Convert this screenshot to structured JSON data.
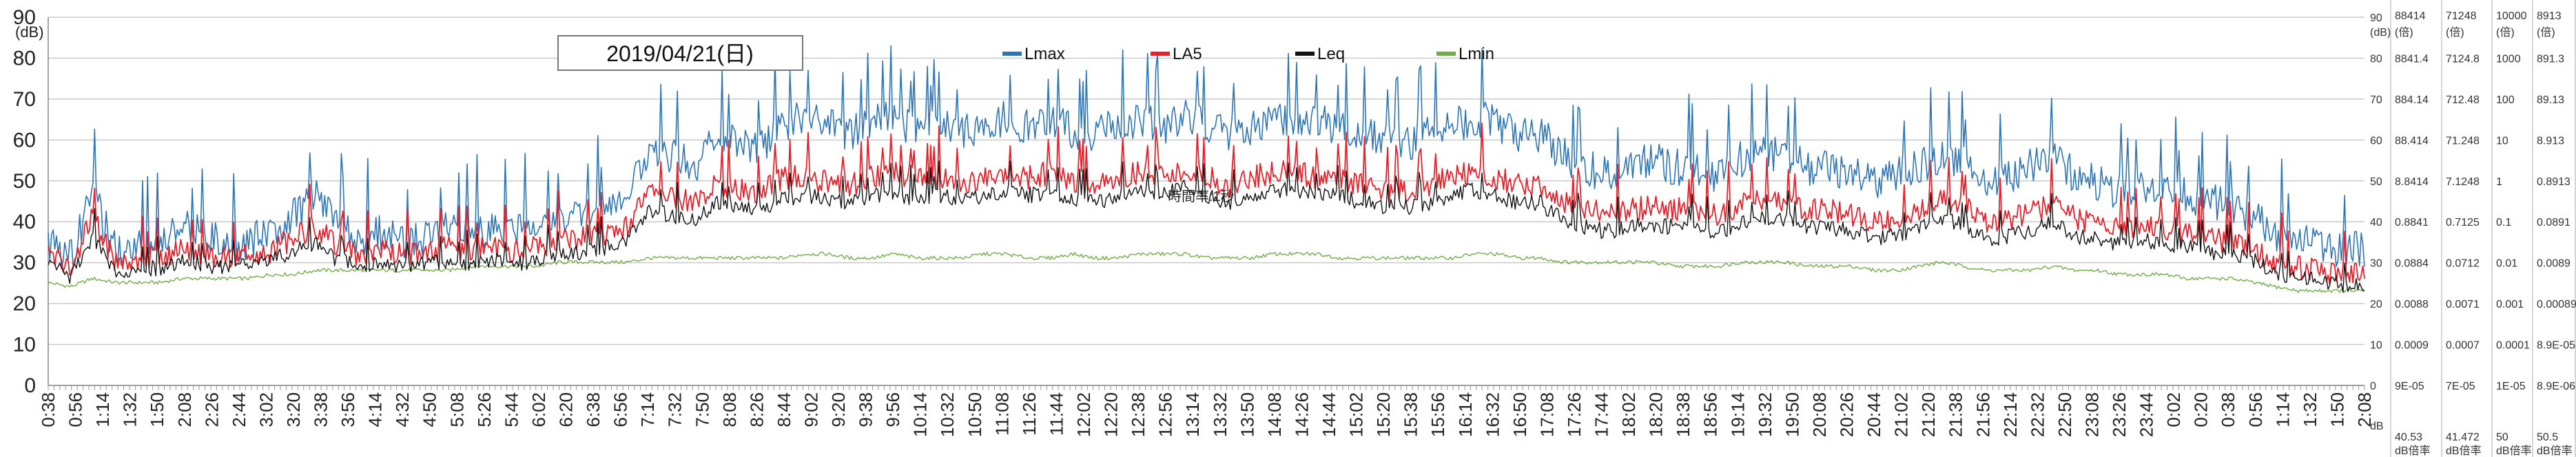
{
  "chart_data": {
    "type": "line",
    "title": "2019/04/21(日)",
    "ylabel": "(dB)",
    "ylim": [
      0,
      90
    ],
    "yticks": [
      0,
      10,
      20,
      30,
      40,
      50,
      60,
      70,
      80,
      90
    ],
    "legend": {
      "placement": "top-center"
    },
    "annotation": "時間率:1秒",
    "colors": {
      "Lmax": "#2e75b6",
      "LA5": "#e8202a",
      "Leq": "#111111",
      "Lmin": "#70ad47"
    },
    "x_tick_labels": [
      "0:38",
      "0:56",
      "1:14",
      "1:32",
      "1:50",
      "2:08",
      "2:26",
      "2:44",
      "3:02",
      "3:20",
      "3:38",
      "3:56",
      "4:14",
      "4:32",
      "4:50",
      "5:08",
      "5:26",
      "5:44",
      "6:02",
      "6:20",
      "6:38",
      "6:56",
      "7:14",
      "7:32",
      "7:50",
      "8:08",
      "8:26",
      "8:44",
      "9:02",
      "9:20",
      "9:38",
      "9:56",
      "10:14",
      "10:32",
      "10:50",
      "11:08",
      "11:26",
      "11:44",
      "12:02",
      "12:20",
      "12:38",
      "12:56",
      "13:14",
      "13:32",
      "13:50",
      "14:08",
      "14:26",
      "14:44",
      "15:02",
      "15:20",
      "15:38",
      "15:56",
      "16:14",
      "16:32",
      "16:50",
      "17:08",
      "17:26",
      "17:44",
      "18:02",
      "18:20",
      "18:38",
      "18:56",
      "19:14",
      "19:32",
      "19:50",
      "20:08",
      "20:26",
      "20:44",
      "21:02",
      "21:20",
      "21:38",
      "21:56",
      "22:14",
      "22:32",
      "22:50",
      "23:08",
      "23:26",
      "23:44",
      "0:02",
      "0:20",
      "0:38",
      "0:56",
      "1:14",
      "1:32",
      "1:50",
      "2:08"
    ],
    "series": [
      {
        "name": "Lmax",
        "values": [
          33,
          30,
          45,
          32,
          34,
          33,
          38,
          35,
          33,
          34,
          36,
          40,
          45,
          38,
          35,
          36,
          34,
          35,
          38,
          36,
          37,
          36,
          38,
          40,
          40,
          42,
          45,
          55,
          55,
          52,
          60,
          58,
          57,
          62,
          64,
          62,
          60,
          63,
          64,
          61,
          62,
          60,
          62,
          64,
          62,
          63,
          61,
          60,
          62,
          63,
          62,
          64,
          62,
          60,
          62,
          64,
          64,
          63,
          62,
          60,
          58,
          58,
          60,
          62,
          64,
          63,
          60,
          60,
          55,
          52,
          50,
          52,
          54,
          52,
          52,
          50,
          54,
          55,
          55,
          52,
          52,
          50,
          48,
          50,
          52,
          55,
          53,
          48,
          50,
          52,
          55,
          50,
          48,
          46,
          48,
          46,
          45,
          44,
          42,
          40,
          36,
          34,
          33,
          32,
          32
        ]
      },
      {
        "name": "LA5",
        "values": [
          31,
          28,
          40,
          29,
          30,
          30,
          33,
          31,
          30,
          31,
          32,
          35,
          38,
          33,
          31,
          32,
          31,
          31,
          33,
          32,
          33,
          32,
          33,
          35,
          35,
          36,
          38,
          46,
          45,
          44,
          48,
          47,
          46,
          50,
          50,
          49,
          48,
          50,
          51,
          49,
          50,
          48,
          50,
          51,
          50,
          51,
          49,
          48,
          50,
          51,
          50,
          52,
          50,
          48,
          50,
          51,
          51,
          50,
          50,
          48,
          47,
          47,
          48,
          50,
          51,
          50,
          48,
          48,
          44,
          42,
          41,
          42,
          43,
          42,
          42,
          41,
          43,
          44,
          44,
          42,
          42,
          41,
          39,
          40,
          42,
          44,
          43,
          39,
          40,
          41,
          44,
          40,
          39,
          37,
          38,
          37,
          36,
          35,
          34,
          32,
          29,
          28,
          27,
          26,
          26
        ]
      },
      {
        "name": "Leq",
        "values": [
          29,
          26,
          36,
          27,
          28,
          28,
          30,
          29,
          28,
          29,
          30,
          32,
          34,
          30,
          29,
          29,
          28,
          29,
          30,
          29,
          30,
          29,
          30,
          32,
          32,
          33,
          35,
          42,
          41,
          40,
          44,
          43,
          42,
          45,
          46,
          45,
          44,
          46,
          46,
          45,
          46,
          44,
          46,
          47,
          46,
          46,
          45,
          44,
          46,
          47,
          46,
          48,
          46,
          44,
          46,
          47,
          47,
          46,
          46,
          44,
          43,
          43,
          44,
          46,
          47,
          46,
          44,
          44,
          40,
          38,
          37,
          38,
          39,
          38,
          38,
          37,
          39,
          40,
          40,
          38,
          38,
          37,
          35,
          36,
          38,
          40,
          39,
          35,
          36,
          37,
          40,
          36,
          35,
          34,
          35,
          34,
          33,
          32,
          31,
          30,
          27,
          26,
          25,
          24,
          24
        ]
      },
      {
        "name": "Lmin",
        "values": [
          25,
          24,
          26,
          25,
          25,
          25,
          26,
          26,
          26,
          26,
          27,
          27,
          28,
          28,
          28,
          28,
          28,
          28,
          28,
          29,
          29,
          29,
          29,
          30,
          30,
          30,
          30,
          31,
          31,
          31,
          31,
          31,
          31,
          31,
          32,
          32,
          31,
          31,
          32,
          31,
          31,
          31,
          32,
          32,
          31,
          31,
          32,
          31,
          31,
          32,
          32,
          32,
          31,
          31,
          31,
          32,
          32,
          32,
          31,
          31,
          31,
          31,
          31,
          31,
          32,
          32,
          31,
          31,
          30,
          30,
          30,
          30,
          30,
          29,
          29,
          29,
          30,
          30,
          30,
          29,
          29,
          29,
          28,
          28,
          29,
          30,
          29,
          28,
          28,
          28,
          29,
          28,
          28,
          27,
          27,
          27,
          26,
          26,
          26,
          25,
          24,
          23,
          23,
          23,
          23
        ]
      }
    ],
    "right_tables": [
      {
        "header": [
          "88414",
          "(倍)"
        ],
        "values": [
          "8841.4",
          "884.14",
          "88.414",
          "8.8414",
          "0.8841",
          "0.0884",
          "0.0088",
          "0.0009",
          "9E-05"
        ],
        "footer": [
          "40.53",
          "dB倍率"
        ]
      },
      {
        "header": [
          "71248",
          "(倍)"
        ],
        "values": [
          "7124.8",
          "712.48",
          "71.248",
          "7.1248",
          "0.7125",
          "0.0712",
          "0.0071",
          "0.0007",
          "7E-05"
        ],
        "footer": [
          "41.472",
          "dB倍率"
        ]
      },
      {
        "header": [
          "10000",
          "(倍)"
        ],
        "values": [
          "1000",
          "100",
          "10",
          "1",
          "0.1",
          "0.01",
          "0.001",
          "0.0001",
          "1E-05"
        ],
        "footer": [
          "50",
          "dB倍率"
        ]
      },
      {
        "header": [
          "8913",
          "(倍)"
        ],
        "values": [
          "891.3",
          "89.13",
          "8.913",
          "0.8913",
          "0.0891",
          "0.0089",
          "0.00089",
          "8.9E-05",
          "8.9E-06"
        ],
        "footer": [
          "50.5",
          "dB倍率"
        ]
      }
    ],
    "right_axis": {
      "ticks": [
        "90",
        "80",
        "70",
        "60",
        "50",
        "40",
        "30",
        "20",
        "10",
        "0"
      ],
      "unit_top": "(dB)",
      "unit_bottom": "dB"
    }
  }
}
